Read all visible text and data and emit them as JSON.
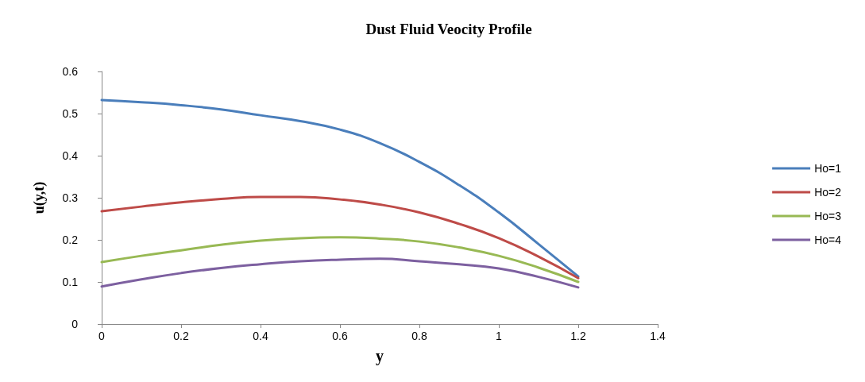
{
  "chart_data": {
    "type": "line",
    "title": "Dust Fluid Veocity Profile",
    "xlabel": "y",
    "ylabel": "u(y,t)",
    "x": [
      0,
      0.1,
      0.2,
      0.3,
      0.4,
      0.5,
      0.6,
      0.7,
      0.8,
      0.9,
      1.0,
      1.1,
      1.2
    ],
    "series": [
      {
        "name": "Ho=1",
        "color": "#4a7ebb",
        "values": [
          0.532,
          0.527,
          0.52,
          0.51,
          0.496,
          0.482,
          0.462,
          0.43,
          0.385,
          0.33,
          0.265,
          0.19,
          0.113
        ]
      },
      {
        "name": "Ho=2",
        "color": "#be4b48",
        "values": [
          0.268,
          0.279,
          0.289,
          0.297,
          0.302,
          0.302,
          0.296,
          0.284,
          0.265,
          0.238,
          0.204,
          0.16,
          0.109
        ]
      },
      {
        "name": "Ho=3",
        "color": "#98b954",
        "values": [
          0.147,
          0.162,
          0.175,
          0.188,
          0.198,
          0.204,
          0.206,
          0.203,
          0.196,
          0.182,
          0.162,
          0.134,
          0.1
        ]
      },
      {
        "name": "Ho=4",
        "color": "#7d60a0",
        "values": [
          0.089,
          0.106,
          0.121,
          0.133,
          0.142,
          0.149,
          0.153,
          0.155,
          0.149,
          0.142,
          0.132,
          0.112,
          0.087
        ]
      }
    ],
    "xlim": [
      0,
      1.4
    ],
    "xticks": [
      0,
      0.2,
      0.4,
      0.6,
      0.8,
      1,
      1.2,
      1.4
    ],
    "ylim": [
      0,
      0.6
    ],
    "yticks": [
      0,
      0.1,
      0.2,
      0.3,
      0.4,
      0.5,
      0.6
    ],
    "grid": false,
    "legend": "right",
    "marker": "none",
    "line_style": "solid"
  }
}
